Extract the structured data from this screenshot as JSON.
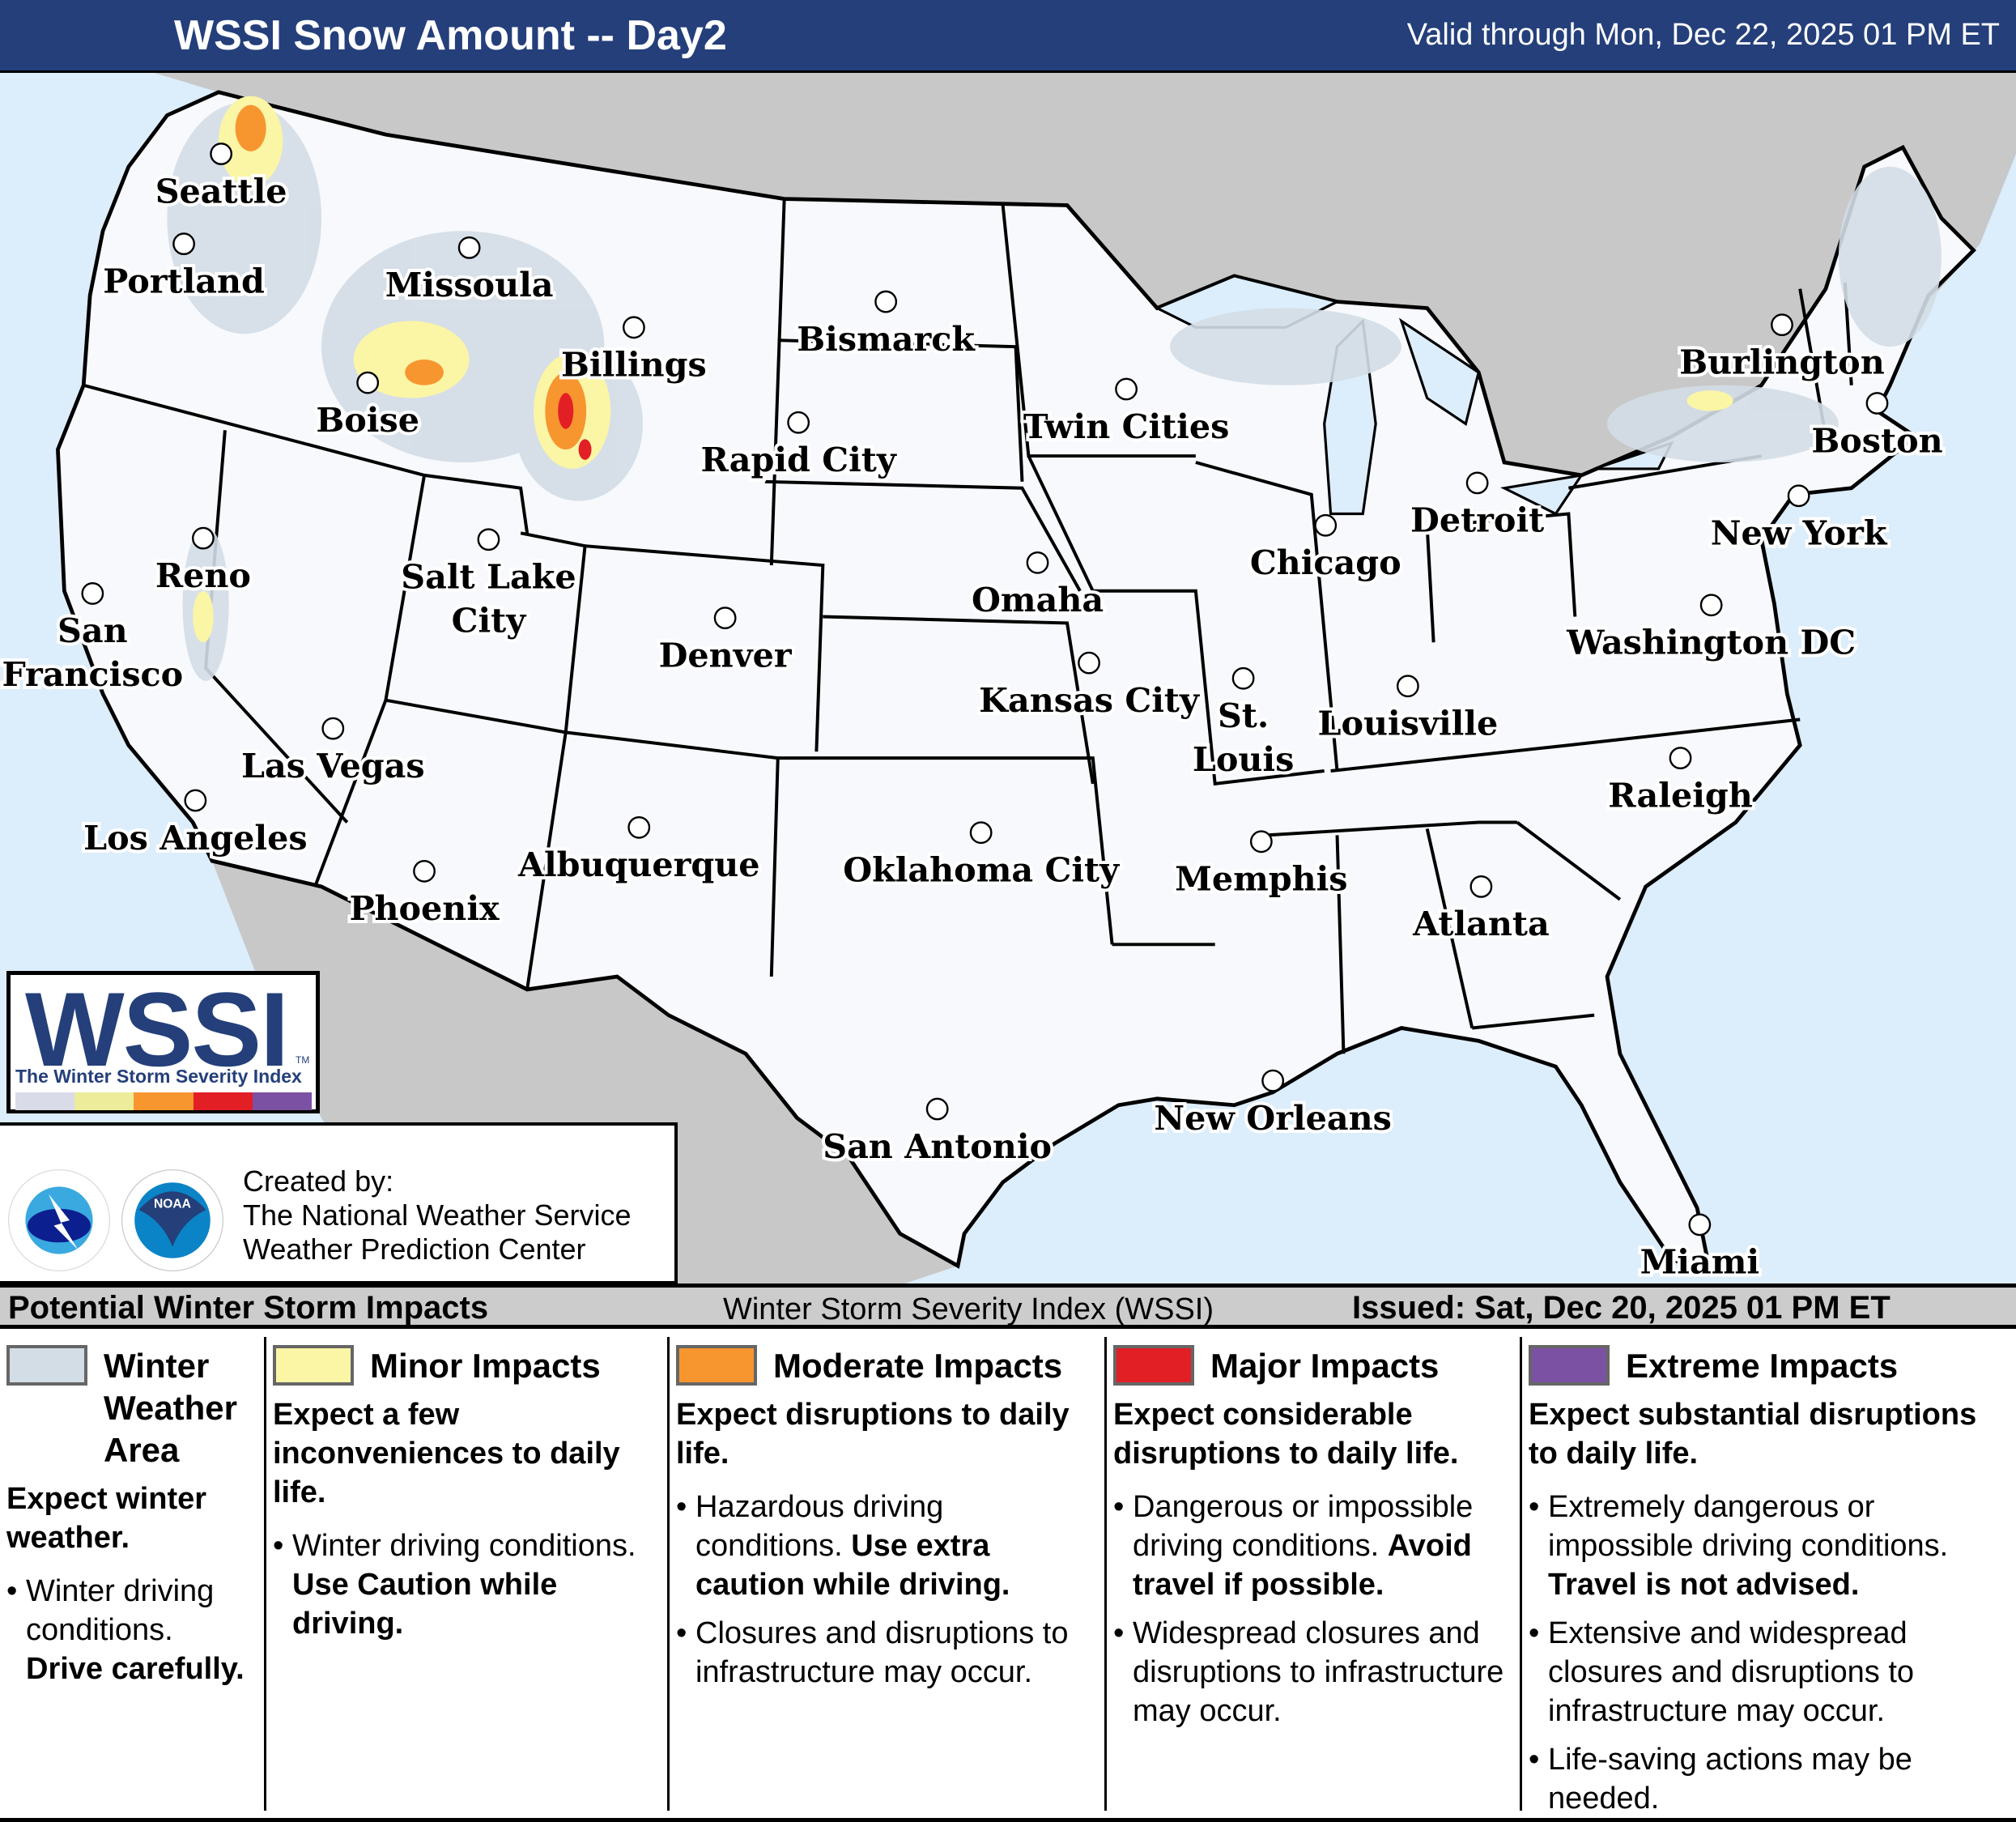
{
  "header": {
    "title": "WSSI Snow Amount -- Day2",
    "valid": "Valid through Mon, Dec 22, 2025 01 PM ET"
  },
  "colors": {
    "header_bg": "#243f7a",
    "ocean": "#dcedfb",
    "foreign_land": "#c8c8c8",
    "us_land": "#f7f9fc",
    "winter_weather_area": "#d3dde6",
    "minor": "#fbf5a6",
    "moderate": "#f7962f",
    "major": "#e31f26",
    "extreme": "#7b52a3"
  },
  "map": {
    "cities": [
      {
        "lines": [
          "Seattle"
        ]
      },
      {
        "lines": [
          "Portland"
        ]
      },
      {
        "lines": [
          "Missoula"
        ]
      },
      {
        "lines": [
          "Boise"
        ]
      },
      {
        "lines": [
          "Billings"
        ]
      },
      {
        "lines": [
          "Bismarck"
        ]
      },
      {
        "lines": [
          "Rapid City"
        ]
      },
      {
        "lines": [
          "Twin Cities"
        ]
      },
      {
        "lines": [
          "Burlington"
        ]
      },
      {
        "lines": [
          "Boston"
        ]
      },
      {
        "lines": [
          "Detroit"
        ]
      },
      {
        "lines": [
          "New York"
        ]
      },
      {
        "lines": [
          "Chicago"
        ]
      },
      {
        "lines": [
          "Reno"
        ]
      },
      {
        "lines": [
          "Salt Lake",
          "City"
        ]
      },
      {
        "lines": [
          "Omaha"
        ]
      },
      {
        "lines": [
          "San",
          "Francisco"
        ]
      },
      {
        "lines": [
          "Denver"
        ]
      },
      {
        "lines": [
          "Washington DC"
        ]
      },
      {
        "lines": [
          "Kansas City"
        ]
      },
      {
        "lines": [
          "St.",
          "Louis"
        ]
      },
      {
        "lines": [
          "Louisville"
        ]
      },
      {
        "lines": [
          "Las Vegas"
        ]
      },
      {
        "lines": [
          "Raleigh"
        ]
      },
      {
        "lines": [
          "Los Angeles"
        ]
      },
      {
        "lines": [
          "Oklahoma City"
        ]
      },
      {
        "lines": [
          "Albuquerque"
        ]
      },
      {
        "lines": [
          "Memphis"
        ]
      },
      {
        "lines": [
          "Phoenix"
        ]
      },
      {
        "lines": [
          "Atlanta"
        ]
      },
      {
        "lines": [
          "New Orleans"
        ]
      },
      {
        "lines": [
          "San Antonio"
        ]
      },
      {
        "lines": [
          "Miami"
        ]
      }
    ]
  },
  "logo": {
    "wordmark": "WSSI",
    "tm": "TM",
    "subtitle": "The Winter Storm Severity Index"
  },
  "credit": {
    "line1": "Created by:",
    "line2": "The National Weather Service",
    "line3": "Weather Prediction Center"
  },
  "legend_bar": {
    "left": "Potential Winter Storm Impacts",
    "middle": "Winter Storm Severity Index (WSSI)",
    "issued": "Issued: Sat, Dec 20, 2025 01 PM ET"
  },
  "legend": [
    {
      "title": "Winter Weather Area",
      "lead": "Expect winter weather.",
      "bullets": [
        [
          "Winter driving conditions.",
          "Drive carefully."
        ]
      ]
    },
    {
      "title": "Minor Impacts",
      "lead": "Expect a few inconveniences to daily life.",
      "bullets": [
        [
          "Winter driving conditions.",
          "Use Caution while driving."
        ]
      ]
    },
    {
      "title": "Moderate Impacts",
      "lead": "Expect disruptions to daily life.",
      "bullets": [
        [
          "Hazardous driving conditions.",
          "Use extra caution while driving."
        ],
        [
          "Closures and disruptions to infrastructure may occur.",
          ""
        ]
      ]
    },
    {
      "title": "Major Impacts",
      "lead": "Expect considerable disruptions to daily life.",
      "bullets": [
        [
          "Dangerous or impossible driving conditions.",
          "Avoid travel if possible."
        ],
        [
          "Widespread closures and disruptions to infrastructure may occur.",
          ""
        ]
      ]
    },
    {
      "title": "Extreme Impacts",
      "lead": "Expect substantial disruptions to daily life.",
      "bullets": [
        [
          "Extremely dangerous or impossible driving conditions.",
          "Travel is not advised."
        ],
        [
          "Extensive and widespread closures and disruptions to infrastructure may occur.",
          ""
        ],
        [
          "Life-saving actions may be needed.",
          ""
        ]
      ]
    }
  ]
}
